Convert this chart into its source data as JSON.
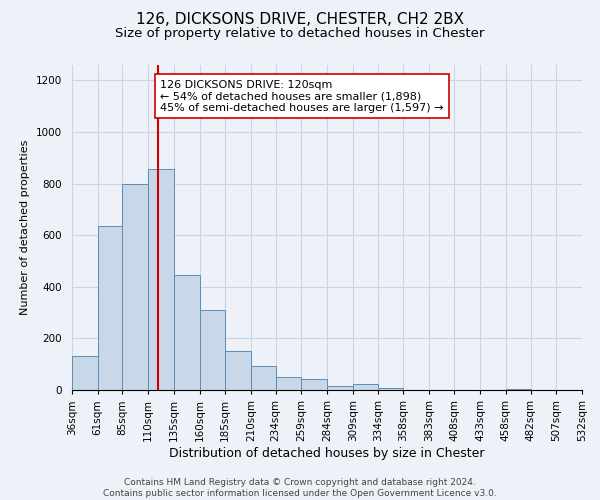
{
  "title": "126, DICKSONS DRIVE, CHESTER, CH2 2BX",
  "subtitle": "Size of property relative to detached houses in Chester",
  "xlabel": "Distribution of detached houses by size in Chester",
  "ylabel": "Number of detached properties",
  "footer_line1": "Contains HM Land Registry data © Crown copyright and database right 2024.",
  "footer_line2": "Contains public sector information licensed under the Open Government Licence v3.0.",
  "annotation_title": "126 DICKSONS DRIVE: 120sqm",
  "annotation_line1": "← 54% of detached houses are smaller (1,898)",
  "annotation_line2": "45% of semi-detached houses are larger (1,597) →",
  "bar_edges": [
    36,
    61,
    85,
    110,
    135,
    160,
    185,
    210,
    234,
    259,
    284,
    309,
    334,
    358,
    383,
    408,
    433,
    458,
    482,
    507,
    532
  ],
  "bar_heights": [
    130,
    635,
    800,
    855,
    445,
    310,
    150,
    92,
    52,
    42,
    15,
    22,
    8,
    0,
    0,
    0,
    0,
    5,
    0,
    0,
    0
  ],
  "bar_color": "#c8d8e8",
  "bar_edge_color": "#5b8db8",
  "vline_x": 120,
  "vline_color": "#cc0000",
  "annotation_box_edge_color": "#cc0000",
  "annotation_box_face_color": "#ffffff",
  "ylim": [
    0,
    1260
  ],
  "yticks": [
    0,
    200,
    400,
    600,
    800,
    1000,
    1200
  ],
  "title_fontsize": 11,
  "subtitle_fontsize": 9.5,
  "xlabel_fontsize": 9,
  "ylabel_fontsize": 8,
  "tick_fontsize": 7.5,
  "footer_fontsize": 6.5,
  "annotation_fontsize": 8,
  "grid_color": "#c8d4e4",
  "background_color": "#eef2f8"
}
